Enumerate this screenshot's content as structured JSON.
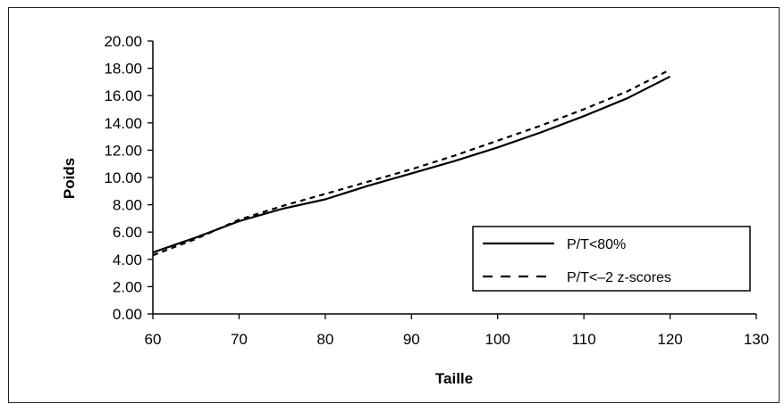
{
  "chart_data": {
    "type": "line",
    "title": "",
    "xlabel": "Taille",
    "ylabel": "Poids",
    "xlim": [
      60,
      130
    ],
    "ylim": [
      0,
      20
    ],
    "x_ticks": [
      "60",
      "70",
      "80",
      "90",
      "100",
      "110",
      "120",
      "130"
    ],
    "y_ticks": [
      "0.00",
      "2.00",
      "4.00",
      "6.00",
      "8.00",
      "10.00",
      "12.00",
      "14.00",
      "16.00",
      "18.00",
      "20.00"
    ],
    "grid": false,
    "legend_position": "right",
    "series": [
      {
        "name": "P/T<80%",
        "style": "solid",
        "color": "#000000",
        "x": [
          60,
          65,
          70,
          75,
          80,
          85,
          90,
          95,
          100,
          105,
          110,
          115,
          120
        ],
        "y": [
          4.5,
          5.6,
          6.8,
          7.7,
          8.4,
          9.4,
          10.3,
          11.2,
          12.2,
          13.3,
          14.5,
          15.8,
          17.4
        ]
      },
      {
        "name": "P/T<–2 z-scores",
        "style": "dashed",
        "color": "#000000",
        "x": [
          60,
          65,
          70,
          75,
          80,
          85,
          90,
          95,
          100,
          105,
          110,
          115,
          120
        ],
        "y": [
          4.3,
          5.5,
          6.9,
          7.9,
          8.8,
          9.7,
          10.6,
          11.6,
          12.7,
          13.8,
          15.0,
          16.3,
          17.9
        ]
      }
    ]
  }
}
